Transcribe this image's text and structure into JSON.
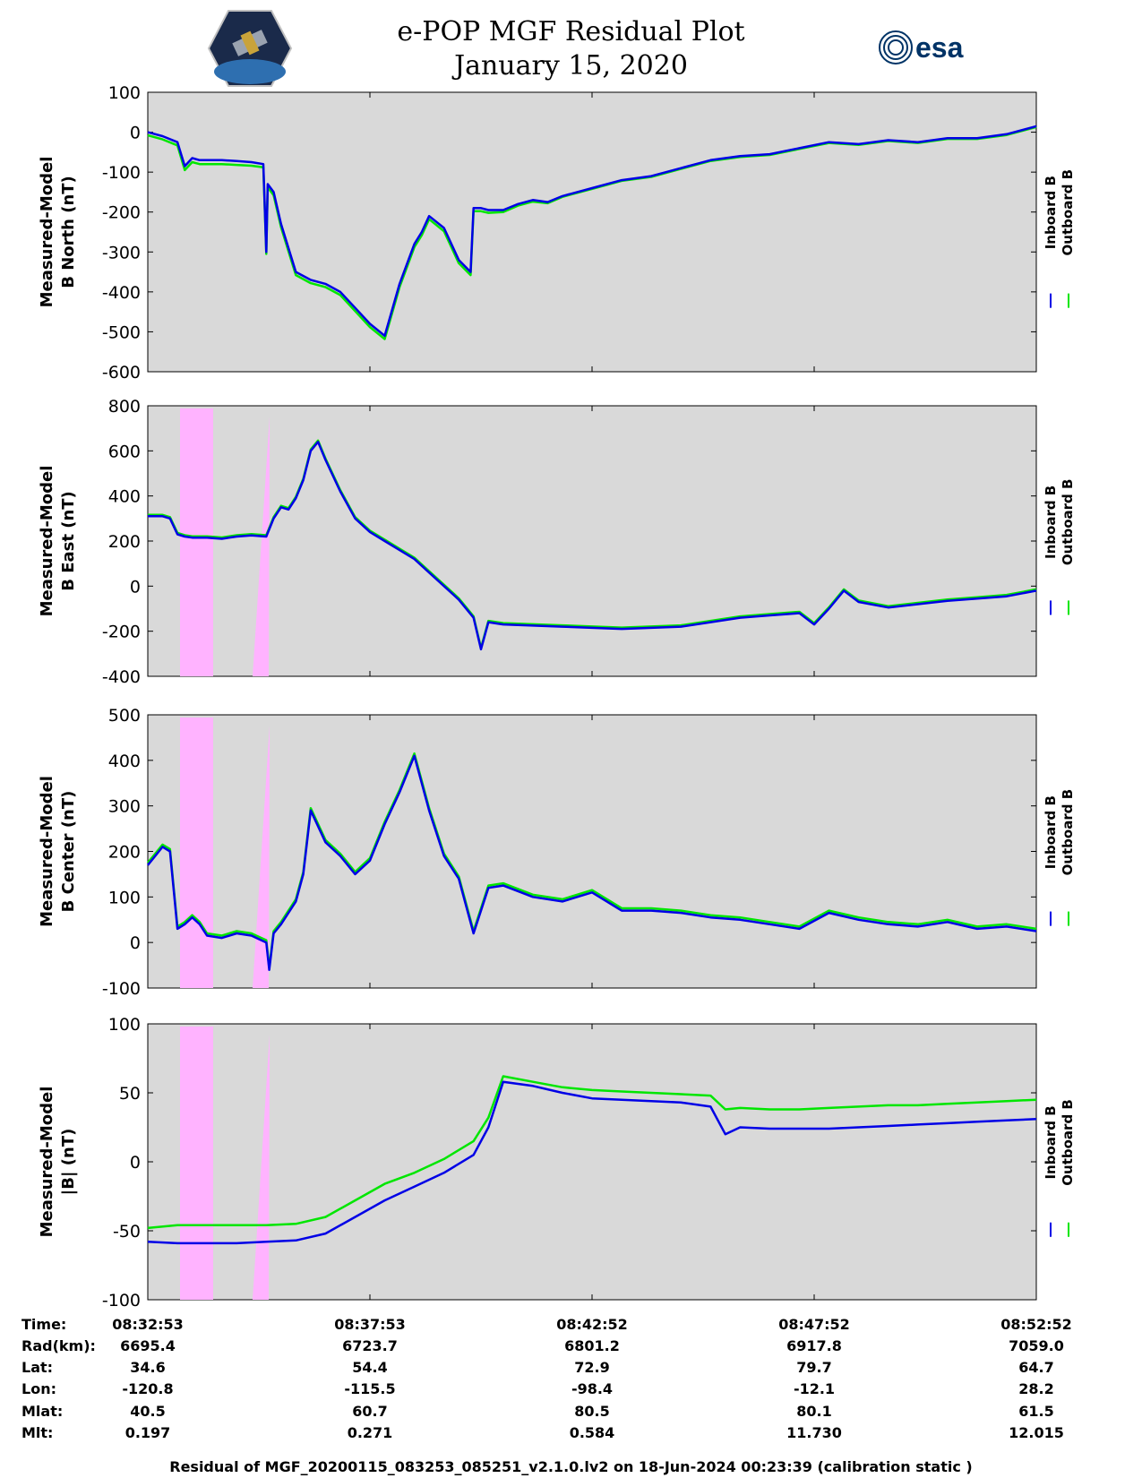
{
  "header": {
    "title": "e-POP MGF Residual Plot",
    "date": "January 15, 2020",
    "logo_left": "cassiope-logo",
    "logo_right_text": "esa"
  },
  "colors": {
    "plot_bg": "#d9d9d9",
    "inboard": "#0000e6",
    "outboard": "#00e600",
    "highlight": "#ffb3ff"
  },
  "chart_data": [
    {
      "type": "line",
      "ylabel_line1": "Measured-Model",
      "ylabel_line2": "B North (nT)",
      "ylim": [
        -600,
        100
      ],
      "yticks": [
        "100",
        "0",
        "-100",
        "-200",
        "-300",
        "-400",
        "-500",
        "-600"
      ],
      "ytick_values": [
        100,
        0,
        -100,
        -200,
        -300,
        -400,
        -500,
        -600
      ],
      "highlight": false,
      "legend": [
        "Inboard B",
        "Outboard B"
      ],
      "series": [
        {
          "name": "Inboard B",
          "x": [
            0,
            1,
            2,
            2.5,
            3,
            3.5,
            4,
            5,
            6,
            7,
            7.8,
            8,
            8.1,
            8.5,
            9,
            10,
            11,
            12,
            13,
            14,
            15,
            16,
            17,
            18,
            18.5,
            19,
            20,
            21,
            21.8,
            22,
            22.5,
            23,
            24,
            25,
            26,
            27,
            28,
            30,
            32,
            34,
            36,
            38,
            40,
            42,
            44,
            46,
            48,
            50,
            52,
            54,
            56,
            58,
            60
          ],
          "y": [
            0,
            -10,
            -25,
            -85,
            -65,
            -70,
            -70,
            -70,
            -72,
            -75,
            -80,
            -300,
            -130,
            -150,
            -230,
            -350,
            -370,
            -380,
            -400,
            -440,
            -480,
            -510,
            -380,
            -280,
            -250,
            -210,
            -240,
            -320,
            -350,
            -190,
            -190,
            -195,
            -195,
            -180,
            -170,
            -175,
            -160,
            -140,
            -120,
            -110,
            -90,
            -70,
            -60,
            -55,
            -40,
            -25,
            -30,
            -20,
            -25,
            -15,
            -15,
            -5,
            15
          ]
        },
        {
          "name": "Outboard B",
          "x": [
            0,
            1,
            2,
            2.5,
            3,
            3.5,
            4,
            5,
            6,
            7,
            7.8,
            8,
            8.1,
            8.5,
            9,
            10,
            11,
            12,
            13,
            14,
            15,
            16,
            17,
            18,
            18.5,
            19,
            20,
            21,
            21.8,
            22,
            22.5,
            23,
            24,
            25,
            26,
            27,
            28,
            30,
            32,
            34,
            36,
            38,
            40,
            42,
            44,
            46,
            48,
            50,
            52,
            54,
            56,
            58,
            60
          ],
          "y": [
            -8,
            -18,
            -33,
            -95,
            -75,
            -80,
            -80,
            -80,
            -82,
            -84,
            -88,
            -305,
            -138,
            -158,
            -238,
            -358,
            -378,
            -388,
            -408,
            -448,
            -488,
            -518,
            -388,
            -288,
            -258,
            -218,
            -248,
            -328,
            -358,
            -198,
            -198,
            -202,
            -200,
            -184,
            -174,
            -178,
            -162,
            -142,
            -122,
            -112,
            -92,
            -72,
            -62,
            -57,
            -42,
            -27,
            -32,
            -22,
            -27,
            -17,
            -17,
            -7,
            13
          ]
        }
      ]
    },
    {
      "type": "line",
      "ylabel_line1": "Measured-Model",
      "ylabel_line2": "B East (nT)",
      "ylim": [
        -400,
        800
      ],
      "yticks": [
        "800",
        "600",
        "400",
        "200",
        "0",
        "-200",
        "-400"
      ],
      "ytick_values": [
        800,
        600,
        400,
        200,
        0,
        -200,
        -400
      ],
      "highlight": true,
      "legend": [
        "Inboard B",
        "Outboard B"
      ],
      "series": [
        {
          "name": "Inboard B",
          "x": [
            0,
            1,
            1.5,
            2,
            2.5,
            3,
            4,
            5,
            6,
            7,
            8,
            8.5,
            9,
            9.5,
            10,
            10.5,
            11,
            11.5,
            12,
            13,
            14,
            15,
            16,
            17,
            18,
            19,
            20,
            21,
            22,
            22.5,
            23,
            24,
            26,
            28,
            30,
            32,
            34,
            36,
            38,
            40,
            42,
            44,
            45,
            46,
            47,
            48,
            50,
            52,
            54,
            56,
            58,
            60
          ],
          "y": [
            310,
            310,
            300,
            230,
            220,
            215,
            215,
            210,
            220,
            225,
            220,
            300,
            350,
            340,
            390,
            470,
            600,
            640,
            560,
            420,
            300,
            240,
            200,
            160,
            120,
            60,
            0,
            -60,
            -140,
            -280,
            -160,
            -170,
            -175,
            -180,
            -185,
            -190,
            -185,
            -180,
            -160,
            -140,
            -130,
            -120,
            -170,
            -100,
            -20,
            -70,
            -95,
            -80,
            -65,
            -55,
            -45,
            -20
          ]
        },
        {
          "name": "Outboard B",
          "x": [
            0,
            1,
            1.5,
            2,
            2.5,
            3,
            4,
            5,
            6,
            7,
            8,
            8.5,
            9,
            9.5,
            10,
            10.5,
            11,
            11.5,
            12,
            13,
            14,
            15,
            16,
            17,
            18,
            19,
            20,
            21,
            22,
            22.5,
            23,
            24,
            26,
            28,
            30,
            32,
            34,
            36,
            38,
            40,
            42,
            44,
            45,
            46,
            47,
            48,
            50,
            52,
            54,
            56,
            58,
            60
          ],
          "y": [
            316,
            316,
            306,
            236,
            226,
            221,
            221,
            216,
            226,
            231,
            226,
            306,
            356,
            346,
            396,
            476,
            606,
            646,
            566,
            426,
            306,
            246,
            206,
            166,
            126,
            66,
            6,
            -54,
            -134,
            -274,
            -154,
            -164,
            -169,
            -174,
            -179,
            -184,
            -179,
            -174,
            -154,
            -134,
            -124,
            -114,
            -164,
            -94,
            -14,
            -64,
            -89,
            -74,
            -59,
            -49,
            -39,
            -14
          ]
        }
      ]
    },
    {
      "type": "line",
      "ylabel_line1": "Measured-Model",
      "ylabel_line2": "B Center (nT)",
      "ylim": [
        -100,
        500
      ],
      "yticks": [
        "500",
        "400",
        "300",
        "200",
        "100",
        "0",
        "-100"
      ],
      "ytick_values": [
        500,
        400,
        300,
        200,
        100,
        0,
        -100
      ],
      "highlight": true,
      "legend": [
        "Inboard B",
        "Outboard B"
      ],
      "series": [
        {
          "name": "Inboard B",
          "x": [
            0,
            0.5,
            1,
            1.5,
            2,
            2.5,
            3,
            3.5,
            4,
            5,
            6,
            7,
            8,
            8.2,
            8.5,
            9,
            10,
            10.5,
            11,
            12,
            13,
            14,
            15,
            16,
            17,
            18,
            19,
            20,
            21,
            22,
            23,
            24,
            26,
            28,
            30,
            32,
            34,
            36,
            38,
            40,
            42,
            44,
            46,
            48,
            50,
            52,
            54,
            56,
            58,
            60
          ],
          "y": [
            170,
            190,
            210,
            200,
            30,
            40,
            55,
            40,
            15,
            10,
            20,
            15,
            0,
            -60,
            20,
            40,
            90,
            150,
            290,
            220,
            190,
            150,
            180,
            260,
            330,
            410,
            290,
            190,
            140,
            20,
            120,
            125,
            100,
            90,
            110,
            70,
            70,
            65,
            55,
            50,
            40,
            30,
            65,
            50,
            40,
            35,
            45,
            30,
            35,
            25
          ]
        },
        {
          "name": "Outboard B",
          "x": [
            0,
            0.5,
            1,
            1.5,
            2,
            2.5,
            3,
            3.5,
            4,
            5,
            6,
            7,
            8,
            8.2,
            8.5,
            9,
            10,
            10.5,
            11,
            12,
            13,
            14,
            15,
            16,
            17,
            18,
            19,
            20,
            21,
            22,
            23,
            24,
            26,
            28,
            30,
            32,
            34,
            36,
            38,
            40,
            42,
            44,
            46,
            48,
            50,
            52,
            54,
            56,
            58,
            60
          ],
          "y": [
            175,
            195,
            215,
            205,
            35,
            45,
            60,
            45,
            20,
            15,
            25,
            20,
            5,
            -55,
            25,
            45,
            95,
            155,
            295,
            225,
            195,
            155,
            185,
            265,
            335,
            415,
            295,
            195,
            145,
            25,
            125,
            130,
            105,
            95,
            115,
            75,
            75,
            70,
            60,
            55,
            45,
            35,
            70,
            55,
            45,
            40,
            50,
            35,
            40,
            30
          ]
        }
      ]
    },
    {
      "type": "line",
      "ylabel_line1": "Measured-Model",
      "ylabel_line2": "|B| (nT)",
      "ylim": [
        -100,
        100
      ],
      "yticks": [
        "100",
        "50",
        "0",
        "-50",
        "-100"
      ],
      "ytick_values": [
        100,
        50,
        0,
        -50,
        -100
      ],
      "highlight": true,
      "legend": [
        "Inboard B",
        "Outboard B"
      ],
      "series": [
        {
          "name": "Inboard B",
          "x": [
            0,
            2,
            4,
            6,
            8,
            10,
            12,
            14,
            16,
            18,
            20,
            22,
            23,
            24,
            26,
            28,
            30,
            32,
            34,
            36,
            38,
            39,
            40,
            42,
            44,
            46,
            48,
            50,
            52,
            54,
            56,
            58,
            60
          ],
          "y": [
            -58,
            -59,
            -59,
            -59,
            -58,
            -57,
            -52,
            -40,
            -28,
            -18,
            -8,
            5,
            25,
            58,
            55,
            50,
            46,
            45,
            44,
            43,
            40,
            20,
            25,
            24,
            24,
            24,
            25,
            26,
            27,
            28,
            29,
            30,
            31
          ]
        },
        {
          "name": "Outboard B",
          "x": [
            0,
            2,
            4,
            6,
            8,
            10,
            12,
            14,
            16,
            18,
            20,
            22,
            23,
            24,
            26,
            28,
            30,
            32,
            34,
            36,
            38,
            39,
            40,
            42,
            44,
            46,
            48,
            50,
            52,
            54,
            56,
            58,
            60
          ],
          "y": [
            -48,
            -46,
            -46,
            -46,
            -46,
            -45,
            -40,
            -28,
            -16,
            -8,
            2,
            15,
            32,
            62,
            58,
            54,
            52,
            51,
            50,
            49,
            48,
            38,
            39,
            38,
            38,
            39,
            40,
            41,
            41,
            42,
            43,
            44,
            45
          ]
        }
      ]
    }
  ],
  "table": {
    "row_labels": [
      "Time:",
      "Rad(km):",
      "Lat:",
      "Lon:",
      "Mlat:",
      "Mlt:"
    ],
    "columns": [
      [
        "08:32:53",
        "6695.4",
        "34.6",
        "-120.8",
        "40.5",
        "0.197"
      ],
      [
        "08:37:53",
        "6723.7",
        "54.4",
        "-115.5",
        "60.7",
        "0.271"
      ],
      [
        "08:42:52",
        "6801.2",
        "72.9",
        "-98.4",
        "80.5",
        "0.584"
      ],
      [
        "08:47:52",
        "6917.8",
        "79.7",
        "-12.1",
        "80.1",
        "11.730"
      ],
      [
        "08:52:52",
        "7059.0",
        "64.7",
        "28.2",
        "61.5",
        "12.015"
      ]
    ]
  },
  "footer": "Residual of MGF_20200115_083253_085251_v2.1.0.lv2 on 18-Jun-2024 00:23:39 (calibration static )"
}
